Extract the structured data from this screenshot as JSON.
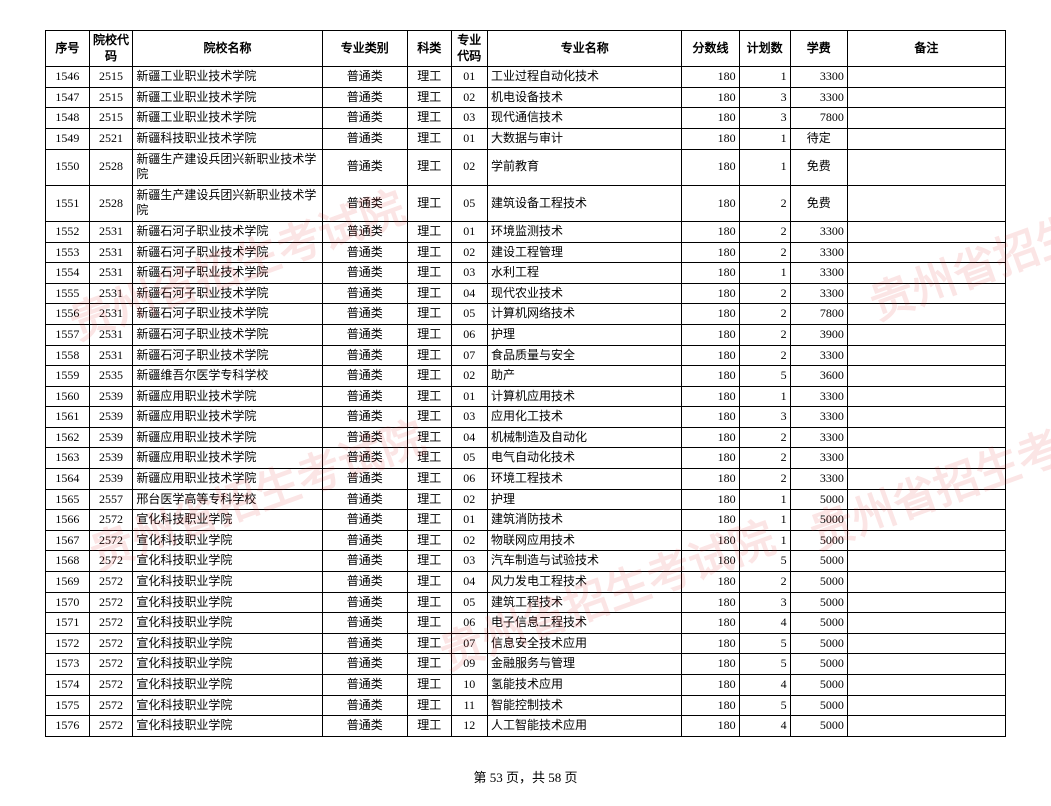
{
  "columns": [
    "序号",
    "院校代码",
    "院校名称",
    "专业类别",
    "科类",
    "专业代码",
    "专业名称",
    "分数线",
    "计划数",
    "学费",
    "备注"
  ],
  "rows": [
    [
      "1546",
      "2515",
      "新疆工业职业技术学院",
      "普通类",
      "理工",
      "01",
      "工业过程自动化技术",
      "180",
      "1",
      "3300",
      ""
    ],
    [
      "1547",
      "2515",
      "新疆工业职业技术学院",
      "普通类",
      "理工",
      "02",
      "机电设备技术",
      "180",
      "3",
      "3300",
      ""
    ],
    [
      "1548",
      "2515",
      "新疆工业职业技术学院",
      "普通类",
      "理工",
      "03",
      "现代通信技术",
      "180",
      "3",
      "7800",
      ""
    ],
    [
      "1549",
      "2521",
      "新疆科技职业技术学院",
      "普通类",
      "理工",
      "01",
      "大数据与审计",
      "180",
      "1",
      "待定",
      ""
    ],
    [
      "1550",
      "2528",
      "新疆生产建设兵团兴新职业技术学院",
      "普通类",
      "理工",
      "02",
      "学前教育",
      "180",
      "1",
      "免费",
      ""
    ],
    [
      "1551",
      "2528",
      "新疆生产建设兵团兴新职业技术学院",
      "普通类",
      "理工",
      "05",
      "建筑设备工程技术",
      "180",
      "2",
      "免费",
      ""
    ],
    [
      "1552",
      "2531",
      "新疆石河子职业技术学院",
      "普通类",
      "理工",
      "01",
      "环境监测技术",
      "180",
      "2",
      "3300",
      ""
    ],
    [
      "1553",
      "2531",
      "新疆石河子职业技术学院",
      "普通类",
      "理工",
      "02",
      "建设工程管理",
      "180",
      "2",
      "3300",
      ""
    ],
    [
      "1554",
      "2531",
      "新疆石河子职业技术学院",
      "普通类",
      "理工",
      "03",
      "水利工程",
      "180",
      "1",
      "3300",
      ""
    ],
    [
      "1555",
      "2531",
      "新疆石河子职业技术学院",
      "普通类",
      "理工",
      "04",
      "现代农业技术",
      "180",
      "2",
      "3300",
      ""
    ],
    [
      "1556",
      "2531",
      "新疆石河子职业技术学院",
      "普通类",
      "理工",
      "05",
      "计算机网络技术",
      "180",
      "2",
      "7800",
      ""
    ],
    [
      "1557",
      "2531",
      "新疆石河子职业技术学院",
      "普通类",
      "理工",
      "06",
      "护理",
      "180",
      "2",
      "3900",
      ""
    ],
    [
      "1558",
      "2531",
      "新疆石河子职业技术学院",
      "普通类",
      "理工",
      "07",
      "食品质量与安全",
      "180",
      "2",
      "3300",
      ""
    ],
    [
      "1559",
      "2535",
      "新疆维吾尔医学专科学校",
      "普通类",
      "理工",
      "02",
      "助产",
      "180",
      "5",
      "3600",
      ""
    ],
    [
      "1560",
      "2539",
      "新疆应用职业技术学院",
      "普通类",
      "理工",
      "01",
      "计算机应用技术",
      "180",
      "1",
      "3300",
      ""
    ],
    [
      "1561",
      "2539",
      "新疆应用职业技术学院",
      "普通类",
      "理工",
      "03",
      "应用化工技术",
      "180",
      "3",
      "3300",
      ""
    ],
    [
      "1562",
      "2539",
      "新疆应用职业技术学院",
      "普通类",
      "理工",
      "04",
      "机械制造及自动化",
      "180",
      "2",
      "3300",
      ""
    ],
    [
      "1563",
      "2539",
      "新疆应用职业技术学院",
      "普通类",
      "理工",
      "05",
      "电气自动化技术",
      "180",
      "2",
      "3300",
      ""
    ],
    [
      "1564",
      "2539",
      "新疆应用职业技术学院",
      "普通类",
      "理工",
      "06",
      "环境工程技术",
      "180",
      "2",
      "3300",
      ""
    ],
    [
      "1565",
      "2557",
      "邢台医学高等专科学校",
      "普通类",
      "理工",
      "02",
      "护理",
      "180",
      "1",
      "5000",
      ""
    ],
    [
      "1566",
      "2572",
      "宣化科技职业学院",
      "普通类",
      "理工",
      "01",
      "建筑消防技术",
      "180",
      "1",
      "5000",
      ""
    ],
    [
      "1567",
      "2572",
      "宣化科技职业学院",
      "普通类",
      "理工",
      "02",
      "物联网应用技术",
      "180",
      "1",
      "5000",
      ""
    ],
    [
      "1568",
      "2572",
      "宣化科技职业学院",
      "普通类",
      "理工",
      "03",
      "汽车制造与试验技术",
      "180",
      "5",
      "5000",
      ""
    ],
    [
      "1569",
      "2572",
      "宣化科技职业学院",
      "普通类",
      "理工",
      "04",
      "风力发电工程技术",
      "180",
      "2",
      "5000",
      ""
    ],
    [
      "1570",
      "2572",
      "宣化科技职业学院",
      "普通类",
      "理工",
      "05",
      "建筑工程技术",
      "180",
      "3",
      "5000",
      ""
    ],
    [
      "1571",
      "2572",
      "宣化科技职业学院",
      "普通类",
      "理工",
      "06",
      "电子信息工程技术",
      "180",
      "4",
      "5000",
      ""
    ],
    [
      "1572",
      "2572",
      "宣化科技职业学院",
      "普通类",
      "理工",
      "07",
      "信息安全技术应用",
      "180",
      "5",
      "5000",
      ""
    ],
    [
      "1573",
      "2572",
      "宣化科技职业学院",
      "普通类",
      "理工",
      "09",
      "金融服务与管理",
      "180",
      "5",
      "5000",
      ""
    ],
    [
      "1574",
      "2572",
      "宣化科技职业学院",
      "普通类",
      "理工",
      "10",
      "氢能技术应用",
      "180",
      "4",
      "5000",
      ""
    ],
    [
      "1575",
      "2572",
      "宣化科技职业学院",
      "普通类",
      "理工",
      "11",
      "智能控制技术",
      "180",
      "5",
      "5000",
      ""
    ],
    [
      "1576",
      "2572",
      "宣化科技职业学院",
      "普通类",
      "理工",
      "12",
      "人工智能技术应用",
      "180",
      "4",
      "5000",
      ""
    ]
  ],
  "footer": "第 53 页，共 58 页",
  "watermark_text": "贵州省招生考试院",
  "col_classes": [
    "c-seq",
    "c-scode",
    "c-sname",
    "c-cat",
    "c-sub",
    "c-mcode",
    "c-mname",
    "c-score",
    "c-plan",
    "c-fee",
    "c-note"
  ],
  "center_text_cols": [
    9
  ],
  "fee_text_values": [
    "待定",
    "免费"
  ]
}
